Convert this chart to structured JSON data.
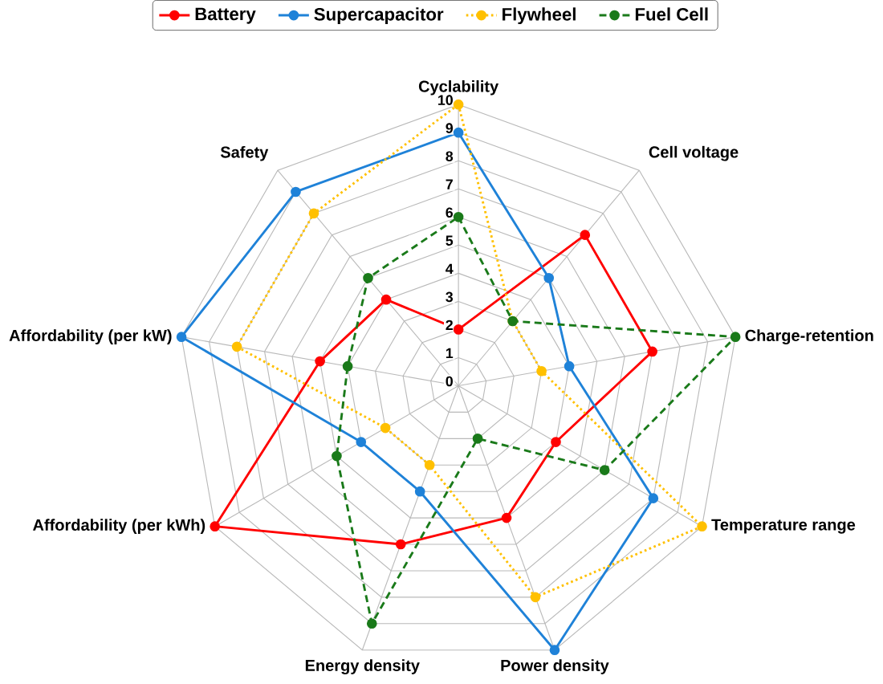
{
  "chart_data": {
    "type": "radar",
    "categories": [
      "Cyclability",
      "Cell voltage",
      "Charge-retention",
      "Temperature range",
      "Power density",
      "Energy density",
      "Affordability (per kWh)",
      "Affordability (per kW)",
      "Safety"
    ],
    "series": [
      {
        "name": "Battery",
        "color": "#ff0000",
        "line_style": "solid",
        "values": [
          2,
          7,
          7,
          4,
          5,
          6,
          10,
          5,
          4
        ]
      },
      {
        "name": "Supercapacitor",
        "color": "#1f82d8",
        "line_style": "solid",
        "values": [
          9,
          5,
          4,
          8,
          10,
          4,
          4,
          10,
          9
        ]
      },
      {
        "name": "Flywheel",
        "color": "#ffc000",
        "line_style": "dotted",
        "values": [
          10,
          3,
          3,
          10,
          8,
          3,
          3,
          8,
          8
        ]
      },
      {
        "name": "Fuel Cell",
        "color": "#1a7a1a",
        "line_style": "dashed",
        "values": [
          6,
          3,
          10,
          6,
          2,
          9,
          5,
          4,
          5
        ]
      }
    ],
    "ylim": [
      0,
      10
    ],
    "yticks": [
      0,
      1,
      2,
      3,
      4,
      5,
      6,
      7,
      8,
      9,
      10
    ],
    "grid": true,
    "legend": "top",
    "marker": "circle"
  }
}
